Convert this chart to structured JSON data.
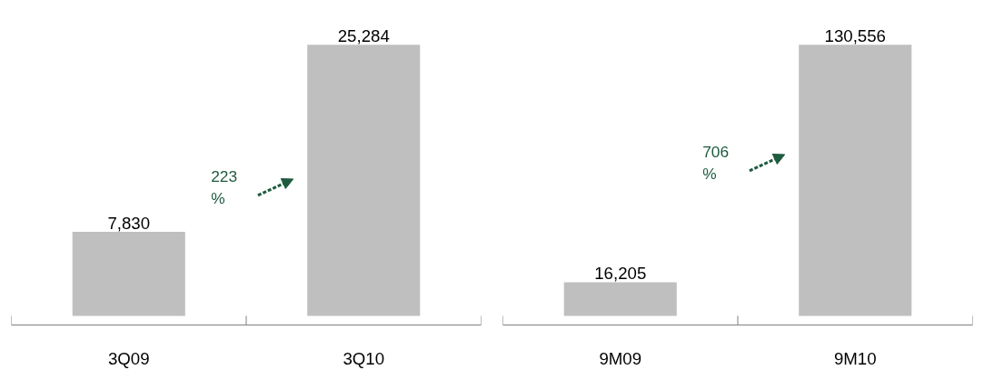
{
  "chart_data": [
    {
      "type": "bar",
      "categories": [
        "3Q09",
        "3Q10"
      ],
      "values": [
        7830,
        25284
      ],
      "value_labels": [
        "7,830",
        "25,284"
      ],
      "color": "#bfbfbf",
      "annotations": [
        "223\n%"
      ]
    },
    {
      "type": "bar",
      "categories": [
        "9M09",
        "9M10"
      ],
      "values": [
        16205,
        130556
      ],
      "value_labels": [
        "16,205",
        "130,556"
      ],
      "color": "#bfbfbf",
      "annotations": [
        "706\n%"
      ]
    }
  ]
}
